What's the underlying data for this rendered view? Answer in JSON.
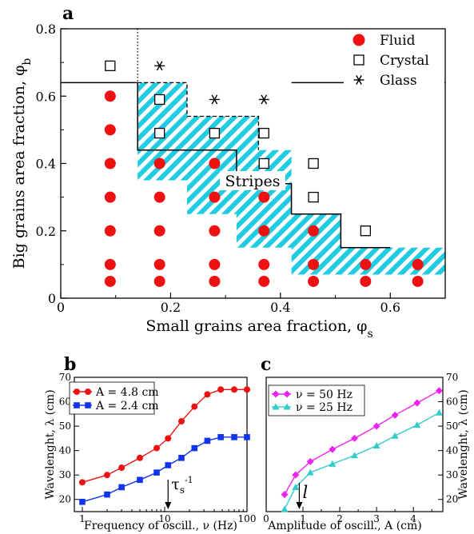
{
  "chart_data": [
    {
      "panel": "a",
      "type": "scatter",
      "xlabel": "Small grains area fraction,  φs",
      "ylabel": "Big grains area fraction,  φb",
      "xlim": [
        0,
        0.7
      ],
      "ylim": [
        0,
        0.8
      ],
      "xticks": [
        "0",
        "0.2",
        "0.4",
        "0.6"
      ],
      "yticks": [
        "0",
        "0.2",
        "0.4",
        "0.6",
        "0.8"
      ],
      "legend_position": "top-right",
      "series": [
        {
          "name": "Fluid",
          "points": [
            [
              0.09,
              0.05
            ],
            [
              0.09,
              0.1
            ],
            [
              0.09,
              0.2
            ],
            [
              0.09,
              0.3
            ],
            [
              0.09,
              0.4
            ],
            [
              0.09,
              0.5
            ],
            [
              0.09,
              0.6
            ],
            [
              0.18,
              0.05
            ],
            [
              0.18,
              0.1
            ],
            [
              0.18,
              0.2
            ],
            [
              0.18,
              0.3
            ],
            [
              0.18,
              0.4
            ],
            [
              0.28,
              0.05
            ],
            [
              0.28,
              0.1
            ],
            [
              0.28,
              0.2
            ],
            [
              0.28,
              0.3
            ],
            [
              0.28,
              0.4
            ],
            [
              0.37,
              0.05
            ],
            [
              0.37,
              0.1
            ],
            [
              0.37,
              0.2
            ],
            [
              0.37,
              0.3
            ],
            [
              0.46,
              0.05
            ],
            [
              0.46,
              0.1
            ],
            [
              0.46,
              0.2
            ],
            [
              0.555,
              0.05
            ],
            [
              0.555,
              0.1
            ],
            [
              0.65,
              0.05
            ],
            [
              0.65,
              0.1
            ]
          ]
        },
        {
          "name": "Crystal",
          "points": [
            [
              0.09,
              0.69
            ],
            [
              0.18,
              0.59
            ],
            [
              0.18,
              0.49
            ],
            [
              0.28,
              0.49
            ],
            [
              0.37,
              0.49
            ],
            [
              0.37,
              0.4
            ],
            [
              0.46,
              0.4
            ],
            [
              0.46,
              0.3
            ],
            [
              0.555,
              0.2
            ]
          ]
        },
        {
          "name": "Glass",
          "points": [
            [
              0.18,
              0.69
            ],
            [
              0.28,
              0.59
            ],
            [
              0.37,
              0.59
            ]
          ]
        }
      ],
      "annotation": "Stripes",
      "stripes_region": [
        [
          0.14,
          0.64
        ],
        [
          0.23,
          0.64
        ],
        [
          0.23,
          0.54
        ],
        [
          0.36,
          0.54
        ],
        [
          0.36,
          0.44
        ],
        [
          0.42,
          0.44
        ],
        [
          0.42,
          0.25
        ],
        [
          0.51,
          0.25
        ],
        [
          0.51,
          0.15
        ],
        [
          0.7,
          0.15
        ],
        [
          0.7,
          0.07
        ],
        [
          0.42,
          0.07
        ],
        [
          0.42,
          0.15
        ],
        [
          0.32,
          0.15
        ],
        [
          0.32,
          0.25
        ],
        [
          0.23,
          0.25
        ],
        [
          0.23,
          0.35
        ],
        [
          0.14,
          0.35
        ]
      ],
      "upper_boundary_dashed": [
        [
          0.14,
          0.64
        ],
        [
          0.23,
          0.64
        ],
        [
          0.23,
          0.54
        ],
        [
          0.36,
          0.54
        ],
        [
          0.36,
          0.44
        ]
      ],
      "boundary_solid_top": [
        [
          0,
          0.64
        ],
        [
          0.14,
          0.64
        ]
      ],
      "boundary_solid_right": [
        [
          0.42,
          0.64
        ],
        [
          0.7,
          0.64
        ]
      ],
      "boundary_solid_lower": [
        [
          0.14,
          0.64
        ],
        [
          0.14,
          0.44
        ],
        [
          0.32,
          0.44
        ],
        [
          0.32,
          0.34
        ],
        [
          0.42,
          0.34
        ],
        [
          0.42,
          0.25
        ],
        [
          0.51,
          0.25
        ],
        [
          0.51,
          0.15
        ],
        [
          0.6,
          0.15
        ]
      ],
      "dotted_vertical_x": 0.14
    },
    {
      "panel": "b",
      "type": "line",
      "xlabel": "Frequency of oscill.,  ν  (Hz)",
      "ylabel": "Wavelenght, λ (cm)",
      "x_scale": "log",
      "xlim": [
        0.8,
        100
      ],
      "ylim": [
        15,
        70
      ],
      "xticks": [
        "1",
        "10",
        "100"
      ],
      "yticks": [
        "20",
        "30",
        "40",
        "50",
        "60",
        "70"
      ],
      "annotation": "τs-1",
      "annotation_x": 11,
      "legend_position": "top-left",
      "series": [
        {
          "name": "A = 4.8 cm",
          "color": "#ee1111",
          "marker": "circle",
          "x": [
            1,
            2,
            3,
            5,
            8,
            11,
            16,
            23,
            33,
            48,
            70,
            100
          ],
          "y": [
            27,
            30,
            33,
            37,
            41,
            45,
            52,
            58,
            63,
            65,
            65,
            65
          ]
        },
        {
          "name": "A = 2.4 cm",
          "color": "#1133ee",
          "marker": "square",
          "x": [
            1,
            2,
            3,
            5,
            8,
            11,
            16,
            23,
            33,
            48,
            70,
            100
          ],
          "y": [
            19,
            22,
            25,
            28,
            31,
            34,
            37,
            41,
            44,
            45.5,
            45.5,
            45.5
          ]
        }
      ]
    },
    {
      "panel": "c",
      "type": "line",
      "xlabel": "Amplitude of oscill., A (cm)",
      "ylabel": "Wavelenght, λ (cm)",
      "xlim": [
        0,
        4.8
      ],
      "ylim": [
        15,
        70
      ],
      "xticks": [
        "0",
        "1",
        "2",
        "3",
        "4"
      ],
      "yticks": [
        "20",
        "30",
        "40",
        "50",
        "60",
        "70"
      ],
      "annotation": "l",
      "annotation_x": 0.9,
      "legend_position": "top-left",
      "series": [
        {
          "name": "ν = 50 Hz",
          "color": "#ee22ee",
          "marker": "diamond",
          "x": [
            0.5,
            0.8,
            1.2,
            1.8,
            2.4,
            3.0,
            3.5,
            4.1,
            4.7
          ],
          "y": [
            22,
            30,
            35.5,
            40.5,
            45,
            50,
            54.5,
            59.5,
            64.5
          ]
        },
        {
          "name": "ν = 25 Hz",
          "color": "#33cccc",
          "marker": "triangle",
          "x": [
            0.5,
            0.8,
            1.2,
            1.8,
            2.4,
            3.0,
            3.5,
            4.1,
            4.7
          ],
          "y": [
            16,
            25,
            31,
            34.5,
            38,
            42,
            46,
            50.5,
            55.5
          ]
        }
      ]
    }
  ],
  "labels": {
    "panel_a": "a",
    "panel_b": "b",
    "panel_c": "c"
  }
}
